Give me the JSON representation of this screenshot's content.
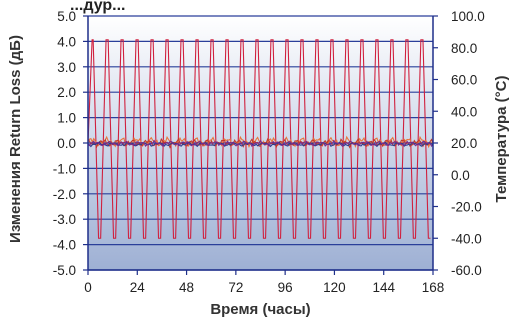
{
  "chart_data": {
    "type": "line",
    "title_fragment": "...дур...",
    "xlabel": "Время (часы)",
    "ylabel_left": "Изменения Return Loss (дБ)",
    "ylabel_right": "Температура (°C)",
    "x_ticks": [
      "0",
      "24",
      "48",
      "72",
      "96",
      "120",
      "144",
      "168"
    ],
    "y_left_ticks": [
      "-5.0",
      "-4.0",
      "-3.0",
      "-2.0",
      "-1.0",
      "0.0",
      "1.0",
      "2.0",
      "3.0",
      "4.0",
      "5.0"
    ],
    "y_right_ticks": [
      "-60.0",
      "-40.0",
      "-20.0",
      "0.0",
      "20.0",
      "40.0",
      "60.0",
      "80.0",
      "100.0"
    ],
    "xlim": [
      0,
      168
    ],
    "ylim_left": [
      -5,
      5
    ],
    "ylim_right": [
      -60,
      100
    ],
    "grid": true,
    "background_gradient": [
      "#ffffff",
      "#9eb0d4"
    ],
    "series": [
      {
        "axis": "right",
        "color": "#d0203e",
        "cycle_hours": 7.3,
        "cycles": 23,
        "high_c": 85,
        "low_c": -40,
        "shape_fractions_of_cycle": [
          0,
          0.07,
          0.43,
          0.57,
          0.93,
          1.0
        ]
      },
      {
        "axis": "left",
        "color": "#e8743b",
        "level_db": 0.05,
        "amplitude_db": 0.18
      },
      {
        "axis": "left",
        "color": "#c0392b",
        "level_db": 0.0,
        "amplitude_db": 0.15
      },
      {
        "axis": "left",
        "color": "#2b3a8f",
        "level_db": -0.05,
        "amplitude_db": 0.08
      },
      {
        "axis": "left",
        "color": "#7a2a8a",
        "level_db": -0.02,
        "amplitude_db": 0.1
      }
    ]
  }
}
